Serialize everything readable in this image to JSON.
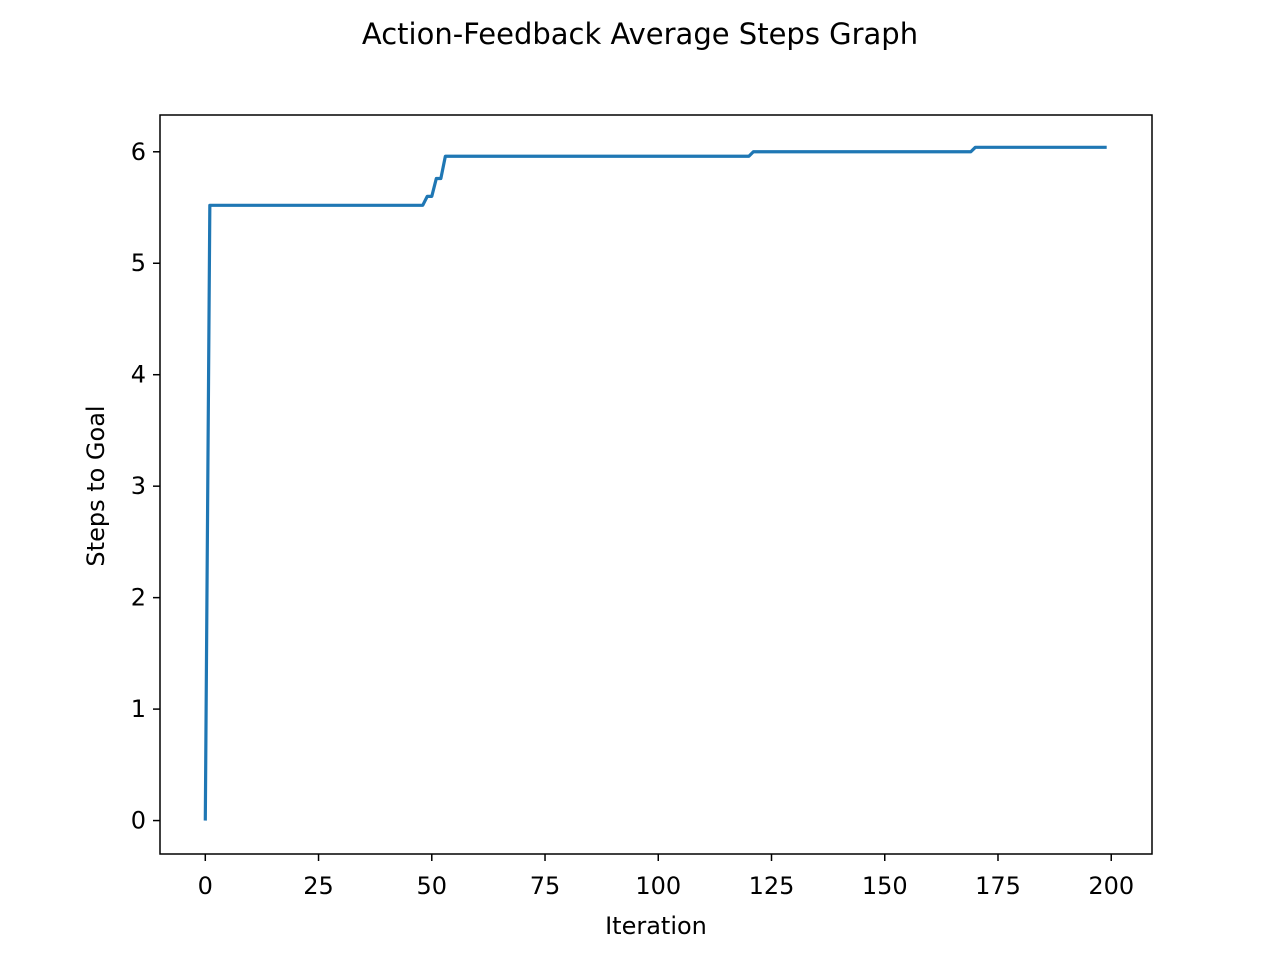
{
  "chart_data": {
    "type": "line",
    "title": "Action-Feedback Average Steps Graph",
    "xlabel": "Iteration",
    "ylabel": "Steps to Goal",
    "xlim": [
      -10,
      209
    ],
    "ylim": [
      -0.3,
      6.33
    ],
    "xticks": [
      0,
      25,
      50,
      75,
      100,
      125,
      150,
      175,
      200
    ],
    "yticks": [
      0,
      1,
      2,
      3,
      4,
      5,
      6
    ],
    "grid": false,
    "legend": "none",
    "series": [
      {
        "color": "#1f77b4",
        "points": [
          [
            0,
            0
          ],
          [
            1,
            5.52
          ],
          [
            48,
            5.52
          ],
          [
            49,
            5.6
          ],
          [
            50,
            5.6
          ],
          [
            51,
            5.76
          ],
          [
            52,
            5.76
          ],
          [
            53,
            5.96
          ],
          [
            120,
            5.96
          ],
          [
            121,
            6.0
          ],
          [
            169,
            6.0
          ],
          [
            170,
            6.04
          ],
          [
            199,
            6.04
          ]
        ]
      }
    ]
  }
}
